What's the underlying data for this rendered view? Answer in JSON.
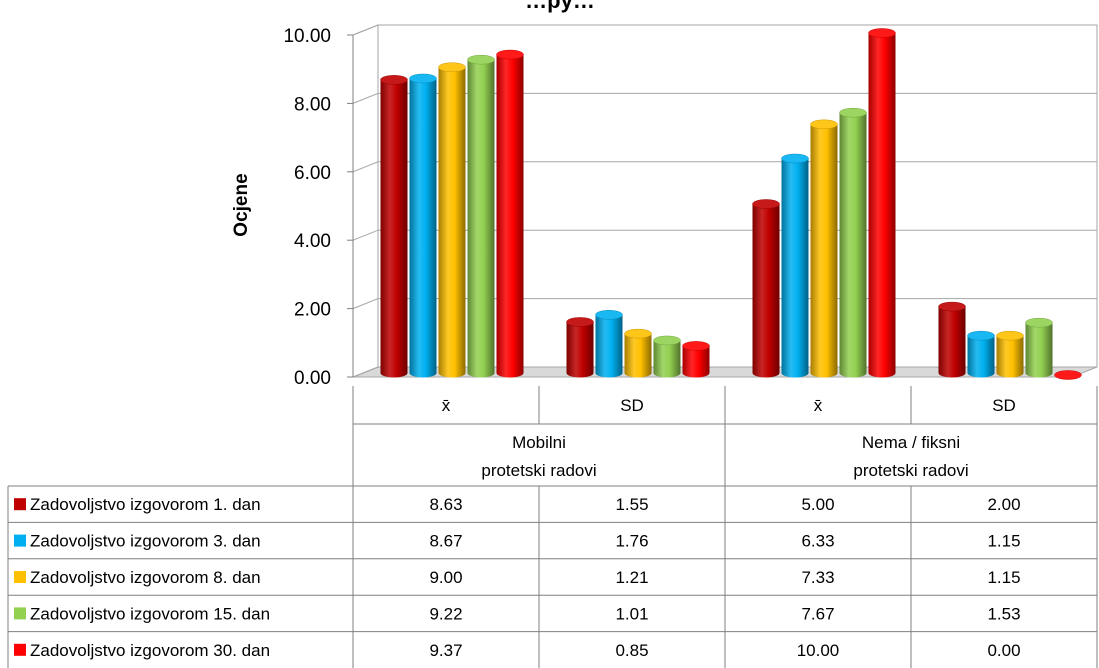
{
  "chart_data": {
    "type": "bar",
    "title": "…py…",
    "ylabel": "Ocjene",
    "ylim": [
      0,
      10
    ],
    "yticks": [
      "0.00",
      "2.00",
      "4.00",
      "6.00",
      "8.00",
      "10.00"
    ],
    "groups": [
      {
        "label_lines": [
          "Mobilni",
          "protetski radovi"
        ],
        "subcategories": [
          "x̄",
          "SD"
        ]
      },
      {
        "label_lines": [
          "Nema / fiksni",
          "protetski radovi"
        ],
        "subcategories": [
          "x̄",
          "SD"
        ]
      }
    ],
    "series": [
      {
        "name": "Zadovoljstvo izgovorom 1. dan",
        "color": "#c00000",
        "values": [
          8.63,
          1.55,
          5.0,
          2.0
        ],
        "labels": [
          "8.63",
          "1.55",
          "5.00",
          "2.00"
        ]
      },
      {
        "name": "Zadovoljstvo izgovorom 3. dan",
        "color": "#00b0f0",
        "values": [
          8.67,
          1.76,
          6.33,
          1.15
        ],
        "labels": [
          "8.67",
          "1.76",
          "6.33",
          "1.15"
        ]
      },
      {
        "name": "Zadovoljstvo izgovorom 8. dan",
        "color": "#ffc000",
        "values": [
          9.0,
          1.21,
          7.33,
          1.15
        ],
        "labels": [
          "9.00",
          "1.21",
          "7.33",
          "1.15"
        ]
      },
      {
        "name": "Zadovoljstvo izgovorom 15. dan",
        "color": "#92d050",
        "values": [
          9.22,
          1.01,
          7.67,
          1.53
        ],
        "labels": [
          "9.22",
          "1.01",
          "7.67",
          "1.53"
        ]
      },
      {
        "name": "Zadovoljstvo izgovorom 30. dan",
        "color": "#ff0000",
        "values": [
          9.37,
          0.85,
          10.0,
          0.0
        ],
        "labels": [
          "9.37",
          "0.85",
          "10.00",
          "0.00"
        ]
      }
    ],
    "grid": true,
    "legend": "table-left"
  }
}
